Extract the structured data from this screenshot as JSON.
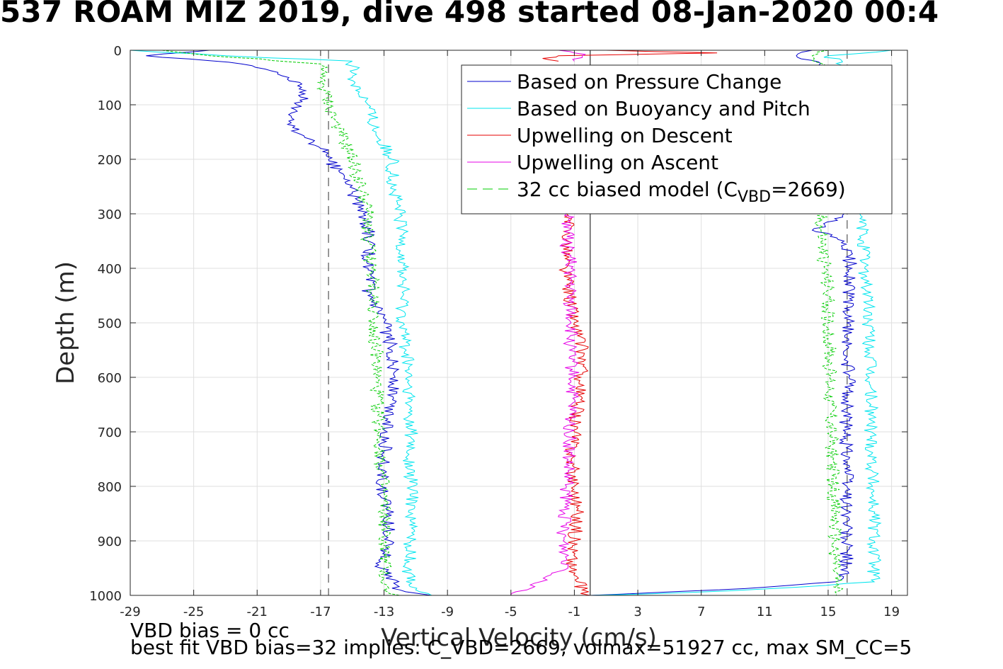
{
  "chart_data": {
    "type": "line",
    "title": "537 ROAM MIZ 2019, dive 498 started 08-Jan-2020 00:4",
    "xlabel": "Vertical Velocity (cm/s)",
    "ylabel": "Depth (m)",
    "xlim": [
      -29,
      20
    ],
    "ylim": [
      1000,
      0
    ],
    "y_reversed": true,
    "grid": true,
    "legend_position": "top-right",
    "xticks": [
      "-29",
      "-25",
      "-21",
      "-17",
      "-13",
      "-9",
      "-5",
      "-1",
      "3",
      "7",
      "11",
      "15",
      "19"
    ],
    "yticks": [
      "0",
      "100",
      "200",
      "300",
      "400",
      "500",
      "600",
      "700",
      "800",
      "900",
      "1000"
    ],
    "reference_lines": {
      "descent_model_mean": -16.5,
      "ascent_model_mean": 16.2,
      "zero_line": 0
    },
    "series": [
      {
        "name": "Based on Pressure Change",
        "color": "#0000cc",
        "style": "solid",
        "segments": [
          {
            "depth": [
              0,
              10,
              25,
              50,
              80,
              100,
              130,
              160,
              180,
              200,
              230,
              260,
              300,
              330,
              350,
              400,
              450,
              500,
              550,
              600,
              650,
              700,
              750,
              800,
              850,
              900,
              950,
              990,
              1000
            ],
            "velocity": [
              -24,
              -28,
              -22,
              -19,
              -18,
              -18.5,
              -19,
              -18,
              -17,
              -16.5,
              -15.5,
              -15,
              -14.3,
              -14,
              -14,
              -14,
              -14,
              -13,
              -12.5,
              -12.3,
              -12.6,
              -12.8,
              -13,
              -13.2,
              -12.8,
              -12.6,
              -13.2,
              -12,
              -10
            ]
          },
          {
            "depth": [
              0,
              10,
              30,
              300,
              330,
              350,
              400,
              450,
              500,
              550,
              600,
              650,
              700,
              750,
              800,
              850,
              900,
              950,
              975,
              985,
              990,
              995,
              1000
            ],
            "velocity": [
              14,
              13,
              15,
              16,
              14,
              16,
              16.5,
              16.3,
              16.2,
              16.1,
              16.3,
              16.2,
              16.1,
              16.3,
              16.2,
              16.2,
              16.1,
              16.2,
              15.5,
              11,
              8,
              4,
              0
            ]
          }
        ]
      },
      {
        "name": "Based on Buoyancy and Pitch",
        "color": "#00e5ee",
        "style": "solid",
        "segments": [
          {
            "depth": [
              0,
              10,
              20,
              50,
              100,
              150,
              200,
              250,
              300,
              350,
              400,
              450,
              500,
              550,
              600,
              650,
              700,
              750,
              800,
              850,
              900,
              950,
              990,
              1000
            ],
            "velocity": [
              -29,
              -23,
              -15,
              -15,
              -14,
              -13.5,
              -12.5,
              -12.5,
              -12,
              -11.8,
              -11.8,
              -11.8,
              -11.8,
              -11.6,
              -11.5,
              -11.5,
              -11.3,
              -11.5,
              -11.2,
              -11.2,
              -11.3,
              -11.5,
              -11,
              -10
            ]
          },
          {
            "depth": [
              0,
              10,
              30,
              300,
              350,
              400,
              450,
              500,
              550,
              600,
              650,
              700,
              750,
              800,
              850,
              900,
              950,
              975,
              985,
              995,
              1000
            ],
            "velocity": [
              19,
              15,
              16,
              17,
              17.2,
              17.3,
              17.5,
              17.5,
              17.6,
              17.6,
              17.7,
              17.7,
              17.8,
              17.8,
              17.9,
              17.9,
              17.9,
              17.9,
              13,
              6,
              0
            ]
          }
        ]
      },
      {
        "name": "Upwelling on Descent",
        "color": "#e60000",
        "style": "solid",
        "segments": [
          {
            "depth": [
              0,
              5,
              10,
              15,
              20
            ],
            "velocity": [
              1,
              8,
              -2,
              -3,
              -2
            ]
          },
          {
            "depth": [
              300,
              350,
              400,
              450,
              500,
              550,
              600,
              650,
              700,
              750,
              800,
              850,
              900,
              950,
              990,
              1000
            ],
            "velocity": [
              -1.5,
              -1.4,
              -1.6,
              -1.3,
              -1,
              -0.5,
              -0.6,
              -0.8,
              -1,
              -1.2,
              -1,
              -0.8,
              -1,
              -1.2,
              -0.5,
              0
            ]
          }
        ]
      },
      {
        "name": "Upwelling on Ascent",
        "color": "#e600e6",
        "style": "solid",
        "segments": [
          {
            "depth": [
              0,
              5,
              10,
              20
            ],
            "velocity": [
              -2,
              -1,
              -0.5,
              -1
            ]
          },
          {
            "depth": [
              300,
              330,
              350,
              400,
              450,
              500,
              550,
              600,
              650,
              700,
              750,
              800,
              850,
              900,
              950,
              990,
              1000
            ],
            "velocity": [
              -1.5,
              -1.3,
              -1.5,
              -1.2,
              -1.3,
              -1.2,
              -1.3,
              -1.1,
              -1.2,
              -1.3,
              -1.4,
              -1.5,
              -1.6,
              -1.7,
              -1.4,
              -4,
              -5
            ]
          }
        ]
      },
      {
        "name": "32 cc biased model (C_VBD=2669)",
        "color": "#00cc00",
        "style": "dashed",
        "segments": [
          {
            "depth": [
              0,
              10,
              25,
              50,
              100,
              150,
              200,
              250,
              300,
              350,
              400,
              450,
              500,
              550,
              600,
              650,
              700,
              750,
              800,
              850,
              900,
              950,
              990,
              1000
            ],
            "velocity": [
              -27,
              -24,
              -17,
              -17,
              -16.5,
              -15.8,
              -15,
              -14.5,
              -14,
              -14,
              -13.8,
              -13.7,
              -13.6,
              -13.5,
              -13.5,
              -13.4,
              -13.3,
              -13.2,
              -13.1,
              -13,
              -13,
              -13,
              -13,
              -12
            ]
          },
          {
            "depth": [
              0,
              10,
              30,
              300,
              350,
              400,
              450,
              500,
              550,
              600,
              650,
              700,
              750,
              800,
              850,
              900,
              950,
              975,
              1000
            ],
            "velocity": [
              15,
              14,
              15,
              14.5,
              14.6,
              14.8,
              15,
              15,
              15.1,
              15.1,
              15.2,
              15.2,
              15.3,
              15.3,
              15.4,
              15.4,
              15.5,
              15.5,
              15.5
            ]
          }
        ]
      }
    ],
    "legend": {
      "entries": [
        "Based on Pressure Change",
        "Based on Buoyancy and Pitch",
        "Upwelling on Descent",
        "Upwelling on Ascent"
      ],
      "model_prefix": "32 cc biased model (C",
      "model_sub": "VBD",
      "model_suffix": "=2669)"
    },
    "footer": {
      "line1": "VBD bias = 0 cc",
      "line2": "best fit VBD bias=32 implies: C_VBD=2669, volmax=51927 cc, max SM_CC=5"
    }
  }
}
